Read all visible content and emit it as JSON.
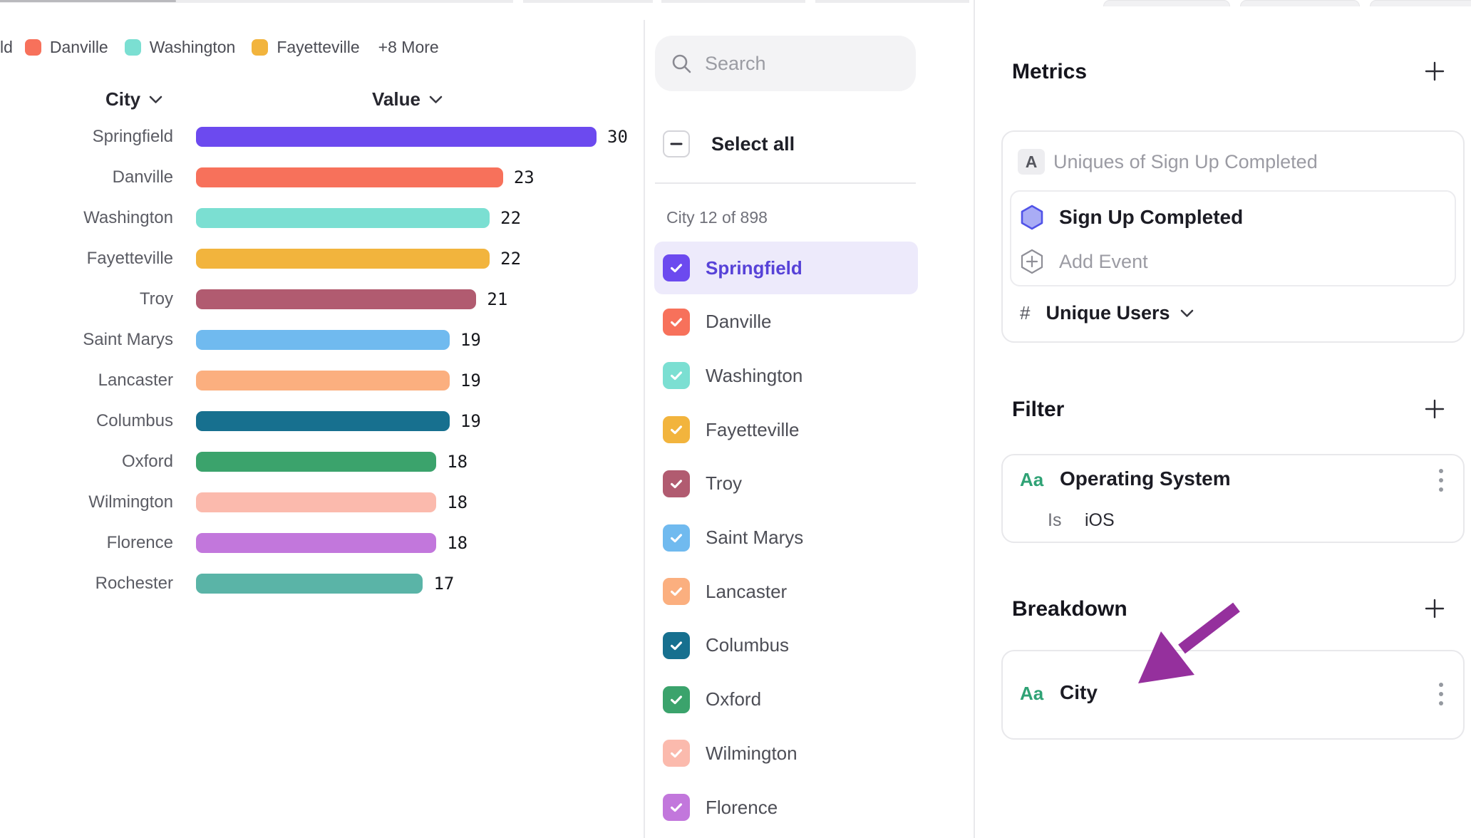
{
  "legend": {
    "clipped_item_text": "ld",
    "items": [
      {
        "label": "Danville",
        "color": "#F7715B"
      },
      {
        "label": "Washington",
        "color": "#7BDFD2"
      },
      {
        "label": "Fayetteville",
        "color": "#F2B43D"
      }
    ],
    "overflow_label": "+8 More"
  },
  "chart_data": {
    "type": "bar",
    "orientation": "horizontal",
    "column_headers": {
      "category": "City",
      "value": "Value"
    },
    "categories": [
      "Springfield",
      "Danville",
      "Washington",
      "Fayetteville",
      "Troy",
      "Saint Marys",
      "Lancaster",
      "Columbus",
      "Oxford",
      "Wilmington",
      "Florence",
      "Rochester"
    ],
    "values": [
      30,
      23,
      22,
      22,
      21,
      19,
      19,
      19,
      18,
      18,
      18,
      17
    ],
    "colors": [
      "#6C4AEF",
      "#F7715B",
      "#7BDFD2",
      "#F2B43D",
      "#B15B70",
      "#70BAEF",
      "#FBAF7F",
      "#17708F",
      "#3BA36C",
      "#FBBAAD",
      "#C277DC",
      "#5AB4A7"
    ],
    "xlim": [
      0,
      30
    ],
    "grid": false,
    "legend_position": "top"
  },
  "picker": {
    "search_placeholder": "Search",
    "select_all_label": "Select all",
    "count_label": "City 12 of 898",
    "items": [
      {
        "label": "Springfield",
        "color": "#6C4AEF",
        "checked": true,
        "selected": true
      },
      {
        "label": "Danville",
        "color": "#F7715B",
        "checked": true,
        "selected": false
      },
      {
        "label": "Washington",
        "color": "#7BDFD2",
        "checked": true,
        "selected": false
      },
      {
        "label": "Fayetteville",
        "color": "#F2B43D",
        "checked": true,
        "selected": false
      },
      {
        "label": "Troy",
        "color": "#B15B70",
        "checked": true,
        "selected": false
      },
      {
        "label": "Saint Marys",
        "color": "#70BAEF",
        "checked": true,
        "selected": false
      },
      {
        "label": "Lancaster",
        "color": "#FBAF7F",
        "checked": true,
        "selected": false
      },
      {
        "label": "Columbus",
        "color": "#17708F",
        "checked": true,
        "selected": false
      },
      {
        "label": "Oxford",
        "color": "#3BA36C",
        "checked": true,
        "selected": false
      },
      {
        "label": "Wilmington",
        "color": "#FBBAAD",
        "checked": true,
        "selected": false
      },
      {
        "label": "Florence",
        "color": "#C277DC",
        "checked": true,
        "selected": false
      }
    ]
  },
  "inspector": {
    "metrics": {
      "title": "Metrics",
      "formula_badge": "A",
      "formula_text": "Uniques of Sign Up Completed",
      "event_name": "Sign Up Completed",
      "add_event_label": "Add Event",
      "measure_prefix": "#",
      "measure_label": "Unique Users"
    },
    "filter": {
      "title": "Filter",
      "property_type_badge": "Aa",
      "property_name": "Operating System",
      "operator": "Is",
      "value": "iOS"
    },
    "breakdown": {
      "title": "Breakdown",
      "property_type_badge": "Aa",
      "property_name": "City"
    }
  },
  "colors": {
    "accent_purple": "#6C4AEF",
    "selected_text": "#5742D8",
    "selected_row_bg": "#EDEAFB",
    "annotation_arrow": "#95309D",
    "aa_badge_green": "#2FA275"
  }
}
